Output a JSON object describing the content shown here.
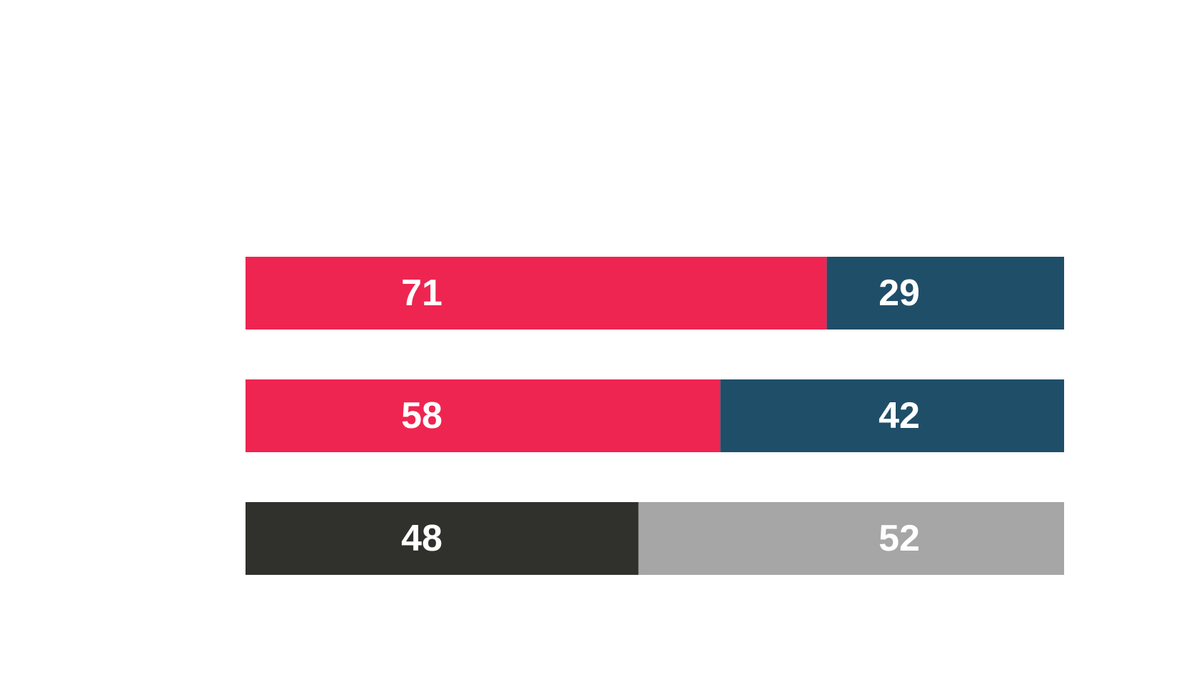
{
  "chart_data": {
    "type": "bar",
    "stacked": true,
    "orientation": "horizontal",
    "title": "",
    "xlabel": "",
    "ylabel": "",
    "xlim": [
      0,
      100
    ],
    "grid": false,
    "rows": [
      {
        "segments": [
          {
            "value": 71,
            "label": "71",
            "color": "#EE2550"
          },
          {
            "value": 29,
            "label": "29",
            "color": "#1F4E69"
          }
        ]
      },
      {
        "segments": [
          {
            "value": 58,
            "label": "58",
            "color": "#EE2550"
          },
          {
            "value": 42,
            "label": "42",
            "color": "#1F4E69"
          }
        ]
      },
      {
        "segments": [
          {
            "value": 48,
            "label": "48",
            "color": "#30302C"
          },
          {
            "value": 52,
            "label": "52",
            "color": "#A6A6A6"
          }
        ]
      }
    ]
  }
}
